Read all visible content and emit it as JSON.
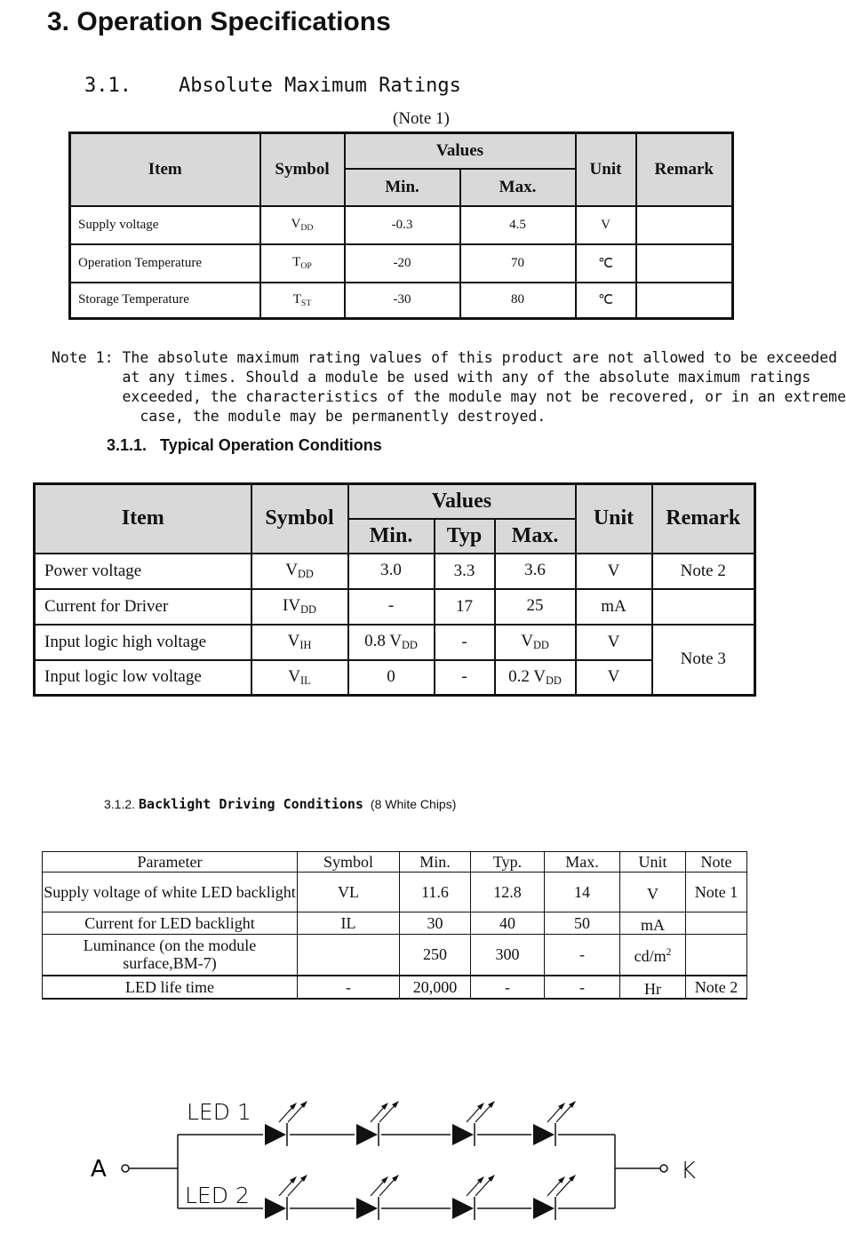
{
  "title": "3. Operation Specifications",
  "s31": {
    "heading": "3.1.    Absolute Maximum Ratings",
    "note_ref": "(Note 1)",
    "headers": {
      "item": "Item",
      "symbol": "Symbol",
      "values": "Values",
      "min": "Min.",
      "max": "Max.",
      "unit": "Unit",
      "remark": "Remark"
    },
    "rows": [
      {
        "item": "Supply voltage",
        "sym": "V",
        "sub": "DD",
        "min": "-0.3",
        "max": "4.5",
        "unit": "V",
        "remark": ""
      },
      {
        "item": "Operation Temperature",
        "sym": "T",
        "sub": "OP",
        "min": "-20",
        "max": "70",
        "unit": "℃",
        "remark": ""
      },
      {
        "item": "Storage Temperature",
        "sym": "T",
        "sub": "ST",
        "min": "-30",
        "max": "80",
        "unit": "℃",
        "remark": ""
      }
    ],
    "note_lines": [
      "Note 1: The absolute maximum rating values of this product are not allowed to be exceeded",
      "        at any times. Should a module be used with any of the absolute maximum ratings",
      "        exceeded, the characteristics of the module may not be recovered, or in an extreme",
      "          case, the module may be permanently destroyed."
    ]
  },
  "s311": {
    "heading": "3.1.1.   Typical Operation Conditions",
    "headers": {
      "item": "Item",
      "symbol": "Symbol",
      "values": "Values",
      "min": "Min.",
      "typ": "Typ",
      "max": "Max.",
      "unit": "Unit",
      "remark": "Remark"
    },
    "rows": [
      {
        "item": "Power voltage",
        "sym": "V",
        "sub": "DD",
        "min": "3.0",
        "min_sub": "",
        "typ": "3.3",
        "max": "3.6",
        "max_sub": "",
        "unit": "V",
        "remark": "Note 2"
      },
      {
        "item": "Current for Driver",
        "sym": "IV",
        "sub": "DD",
        "min": "-",
        "min_sub": "",
        "typ": "17",
        "max": "25",
        "max_sub": "",
        "unit": "mA",
        "remark": ""
      },
      {
        "item": "Input logic high voltage",
        "sym": "V",
        "sub": "IH",
        "min": "0.8 V",
        "min_sub": "DD",
        "typ": "-",
        "max": "V",
        "max_sub": "DD",
        "unit": "V",
        "remark": "Note 3"
      },
      {
        "item": "Input logic low voltage",
        "sym": "V",
        "sub": "IL",
        "min": "0",
        "min_sub": "",
        "typ": "-",
        "max": "0.2 V",
        "max_sub": "DD",
        "unit": "V"
      }
    ]
  },
  "s312": {
    "num": "3.1.2.",
    "heading": "Backlight Driving Conditions",
    "sub": "(8 White Chips)",
    "headers": [
      "Parameter",
      "Symbol",
      "Min.",
      "Typ.",
      "Max.",
      "Unit",
      "Note"
    ],
    "rows": [
      {
        "param": "Supply voltage of white LED backlight",
        "sym": "VL",
        "min": "11.6",
        "typ": "12.8",
        "max": "14",
        "unit": "V",
        "unit_sup": "",
        "note": "Note 1"
      },
      {
        "param": "Current for LED backlight",
        "sym": "IL",
        "min": "30",
        "typ": "40",
        "max": "50",
        "unit": "mA",
        "unit_sup": "",
        "note": ""
      },
      {
        "param": "Luminance (on the module surface,BM-7)",
        "sym": "",
        "min": "250",
        "typ": "300",
        "max": "-",
        "unit": "cd/m",
        "unit_sup": "2",
        "note": ""
      },
      {
        "param": "LED life time",
        "sym": "-",
        "min": "20,000",
        "typ": "-",
        "max": "-",
        "unit": "Hr",
        "unit_sup": "",
        "note": "Note 2"
      }
    ]
  },
  "diagram": {
    "anode": "A",
    "cathode": "K",
    "led1": "LED 1",
    "led2": "LED 2"
  }
}
